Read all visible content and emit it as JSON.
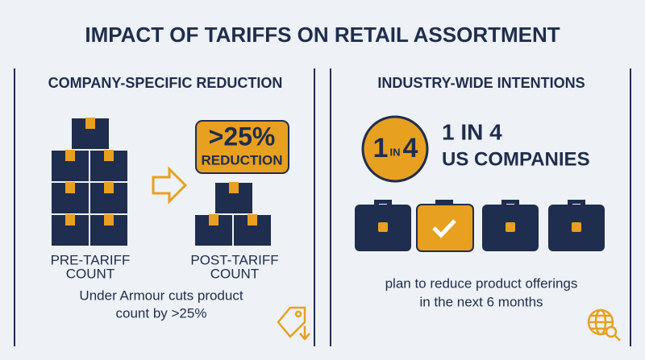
{
  "header": {
    "title": "IMPACT OF TARIFFS ON RETAIL ASSORTMENT"
  },
  "left_panel": {
    "heading": "COMPANY-SPECIFIC REDUCTION",
    "badge": {
      "value": ">25%",
      "label": "REDUCTION"
    },
    "pre_label": [
      "PRE-TARIFF",
      "COUNT"
    ],
    "post_label": [
      "POST-TARIFF",
      "COUNT"
    ],
    "caption": [
      "Under Armour cuts product",
      "count by >25%"
    ]
  },
  "right_panel": {
    "heading": "INDUSTRY-WIDE INTENTIONS",
    "circle": [
      "1",
      "IN",
      "4"
    ],
    "stat": [
      "1 IN 4",
      "US COMPANIES"
    ],
    "caption": [
      "plan to reduce product offerings",
      "in the next 6 months"
    ]
  }
}
